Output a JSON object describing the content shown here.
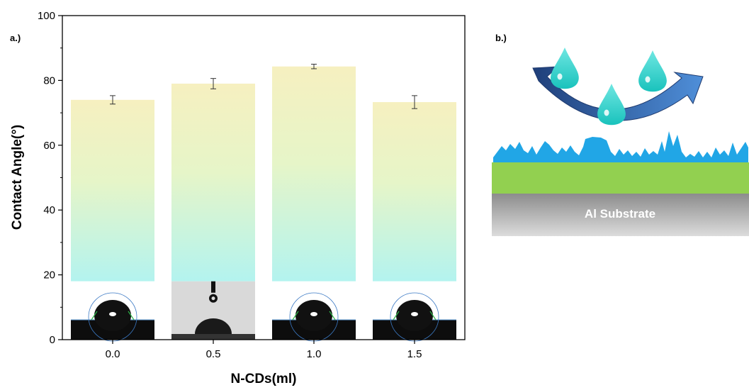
{
  "panel_a_label": "a.)",
  "panel_b_label": "b.)",
  "substrate_label": "Al Substrate",
  "colors": {
    "bar_top": "#f6f0c0",
    "bar_bottom": "#b3f3ef",
    "droplet": "#25cfc9",
    "arrow": "#2f5597",
    "coating_blue": "#21a6e6",
    "coating_green": "#92d050",
    "substrate_gray": "#a6a6a6"
  },
  "chart_data": {
    "type": "bar",
    "categories": [
      "0.0",
      "0.5",
      "1.0",
      "1.5"
    ],
    "values": [
      74,
      79,
      84.3,
      73.3
    ],
    "errors": [
      1.3,
      1.6,
      0.7,
      2.0
    ],
    "xlabel": "N-CDs(ml)",
    "ylabel": "Contact Angle(°)",
    "ylim": [
      0,
      100
    ],
    "yticks": [
      0,
      20,
      40,
      60,
      80,
      100
    ],
    "grid": false,
    "legend": "none"
  }
}
